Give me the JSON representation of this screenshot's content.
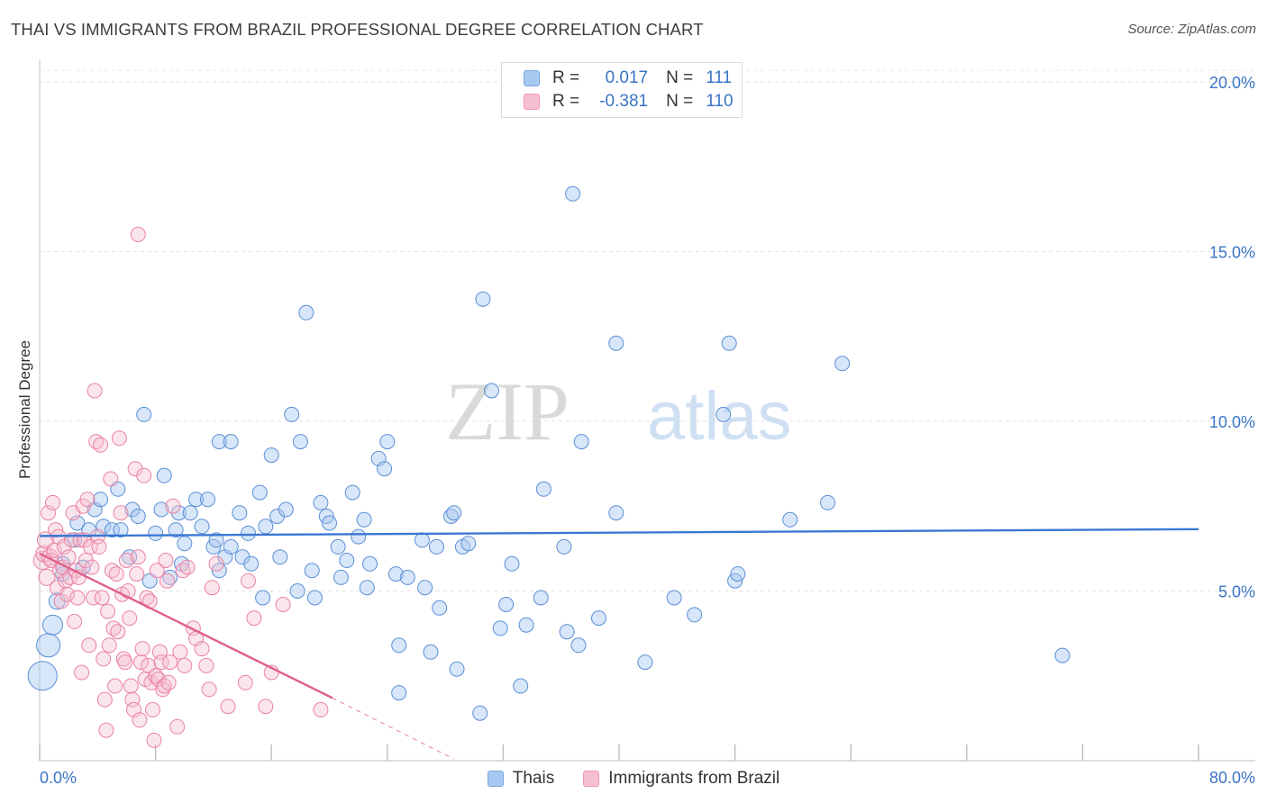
{
  "title": "THAI VS IMMIGRANTS FROM BRAZIL PROFESSIONAL DEGREE CORRELATION CHART",
  "source": "Source: ZipAtlas.com",
  "watermark": {
    "zip": "ZIP",
    "atlas": "atlas"
  },
  "legend": {
    "rows": [
      {
        "r_label": "R =",
        "r_value": "0.017",
        "n_label": "N =",
        "n_value": "111",
        "color": "#a7c8f0",
        "border": "#7aa8e0"
      },
      {
        "r_label": "R =",
        "r_value": "-0.381",
        "n_label": "N =",
        "n_value": "110",
        "color": "#f6bfd0",
        "border": "#ef97b2"
      }
    ]
  },
  "bottom_legend": [
    {
      "label": "Thais",
      "color": "#a7c8f0",
      "border": "#7aa8e0"
    },
    {
      "label": "Immigrants from Brazil",
      "color": "#f6bfd0",
      "border": "#ef97b2"
    }
  ],
  "chart_data": {
    "type": "scatter",
    "title": "THAI VS IMMIGRANTS FROM BRAZIL PROFESSIONAL DEGREE CORRELATION CHART",
    "xlabel": "",
    "ylabel": "Professional Degree",
    "xlim": [
      0,
      80
    ],
    "ylim": [
      0,
      20.5
    ],
    "x_tick_labels": [
      "0.0%",
      "80.0%"
    ],
    "y_ticks": [
      5,
      10,
      15,
      20
    ],
    "y_tick_labels": [
      "5.0%",
      "10.0%",
      "15.0%",
      "20.0%"
    ],
    "grid": true,
    "legend_position": "top-center",
    "series": [
      {
        "name": "Thais",
        "color": "#5b8fd6",
        "fill": "rgba(167,200,240,0.45)",
        "trend": {
          "x": [
            0,
            80
          ],
          "y": [
            6.62,
            6.82
          ],
          "color": "#3a78d4"
        },
        "points": [
          [
            0.2,
            2.5,
            16
          ],
          [
            0.6,
            3.4,
            13
          ],
          [
            0.9,
            4.0,
            11
          ],
          [
            1.2,
            4.7,
            9
          ],
          [
            1.6,
            5.8,
            8
          ],
          [
            1.6,
            5.5,
            8
          ],
          [
            2.4,
            6.5,
            8
          ],
          [
            2.6,
            7.0,
            8
          ],
          [
            3.0,
            5.7,
            8
          ],
          [
            3.4,
            6.8,
            8
          ],
          [
            3.8,
            7.4,
            8
          ],
          [
            4.2,
            7.7,
            8
          ],
          [
            4.4,
            6.9,
            8
          ],
          [
            5.0,
            6.8,
            8
          ],
          [
            5.4,
            8.0,
            8
          ],
          [
            5.6,
            6.8,
            8
          ],
          [
            6.2,
            6.0,
            8
          ],
          [
            6.4,
            7.4,
            8
          ],
          [
            6.8,
            7.2,
            8
          ],
          [
            7.2,
            10.2,
            8
          ],
          [
            7.6,
            5.3,
            8
          ],
          [
            8.0,
            6.7,
            8
          ],
          [
            8.4,
            7.4,
            8
          ],
          [
            8.6,
            8.4,
            8
          ],
          [
            9.0,
            5.4,
            8
          ],
          [
            9.4,
            6.8,
            8
          ],
          [
            9.6,
            7.3,
            8
          ],
          [
            9.8,
            5.8,
            8
          ],
          [
            10.0,
            6.4,
            8
          ],
          [
            10.4,
            7.3,
            8
          ],
          [
            10.8,
            7.7,
            8
          ],
          [
            11.2,
            6.9,
            8
          ],
          [
            11.6,
            7.7,
            8
          ],
          [
            12.0,
            6.3,
            8
          ],
          [
            12.2,
            6.5,
            8
          ],
          [
            12.4,
            5.6,
            8
          ],
          [
            12.4,
            9.4,
            8
          ],
          [
            12.8,
            6.0,
            8
          ],
          [
            13.2,
            6.3,
            8
          ],
          [
            13.2,
            9.4,
            8
          ],
          [
            13.8,
            7.3,
            8
          ],
          [
            14.0,
            6.0,
            8
          ],
          [
            14.4,
            6.7,
            8
          ],
          [
            14.6,
            5.8,
            8
          ],
          [
            15.2,
            7.9,
            8
          ],
          [
            15.4,
            4.8,
            8
          ],
          [
            15.6,
            6.9,
            8
          ],
          [
            16.0,
            9.0,
            8
          ],
          [
            16.4,
            7.2,
            8
          ],
          [
            16.6,
            6.0,
            8
          ],
          [
            17.0,
            7.4,
            8
          ],
          [
            17.4,
            10.2,
            8
          ],
          [
            17.8,
            5.0,
            8
          ],
          [
            18.0,
            9.4,
            8
          ],
          [
            18.4,
            13.2,
            8
          ],
          [
            18.8,
            5.6,
            8
          ],
          [
            19.0,
            4.8,
            8
          ],
          [
            19.4,
            7.6,
            8
          ],
          [
            19.8,
            7.2,
            8
          ],
          [
            20.0,
            7.0,
            8
          ],
          [
            20.6,
            6.3,
            8
          ],
          [
            20.8,
            5.4,
            8
          ],
          [
            21.2,
            5.9,
            8
          ],
          [
            21.6,
            7.9,
            8
          ],
          [
            22.0,
            6.6,
            8
          ],
          [
            22.4,
            7.1,
            8
          ],
          [
            22.6,
            5.1,
            8
          ],
          [
            22.8,
            5.8,
            8
          ],
          [
            23.4,
            8.9,
            8
          ],
          [
            23.8,
            8.6,
            8
          ],
          [
            24.0,
            9.4,
            8
          ],
          [
            24.6,
            5.5,
            8
          ],
          [
            24.8,
            3.4,
            8
          ],
          [
            24.8,
            2.0,
            8
          ],
          [
            25.4,
            5.4,
            8
          ],
          [
            26.4,
            6.5,
            8
          ],
          [
            26.6,
            5.1,
            8
          ],
          [
            27.0,
            3.2,
            8
          ],
          [
            27.4,
            6.3,
            8
          ],
          [
            27.6,
            4.5,
            8
          ],
          [
            28.4,
            7.2,
            8
          ],
          [
            28.6,
            7.3,
            8
          ],
          [
            28.8,
            2.7,
            8
          ],
          [
            29.2,
            6.3,
            8
          ],
          [
            29.6,
            6.4,
            8
          ],
          [
            30.4,
            1.4,
            8
          ],
          [
            30.6,
            13.6,
            8
          ],
          [
            31.2,
            10.9,
            8
          ],
          [
            31.8,
            3.9,
            8
          ],
          [
            32.2,
            4.6,
            8
          ],
          [
            32.6,
            5.8,
            8
          ],
          [
            33.2,
            2.2,
            8
          ],
          [
            33.6,
            4.0,
            8
          ],
          [
            34.6,
            4.8,
            8
          ],
          [
            34.8,
            8.0,
            8
          ],
          [
            36.2,
            6.3,
            8
          ],
          [
            36.4,
            3.8,
            8
          ],
          [
            36.8,
            16.7,
            8
          ],
          [
            37.2,
            3.4,
            8
          ],
          [
            37.4,
            9.4,
            8
          ],
          [
            38.6,
            4.2,
            8
          ],
          [
            39.8,
            7.3,
            8
          ],
          [
            39.8,
            12.3,
            8
          ],
          [
            41.8,
            2.9,
            8
          ],
          [
            43.8,
            4.8,
            8
          ],
          [
            45.2,
            4.3,
            8
          ],
          [
            47.2,
            10.2,
            8
          ],
          [
            47.6,
            12.3,
            8
          ],
          [
            48.0,
            5.3,
            8
          ],
          [
            48.2,
            5.5,
            8
          ],
          [
            51.8,
            7.1,
            8
          ],
          [
            54.4,
            7.6,
            8
          ],
          [
            55.4,
            11.7,
            8
          ],
          [
            70.6,
            3.1,
            8
          ]
        ]
      },
      {
        "name": "Immigrants from Brazil",
        "color": "#ea82a3",
        "fill": "rgba(246,191,208,0.40)",
        "trend": {
          "x": [
            0,
            20.2
          ],
          "y": [
            6.1,
            1.85
          ],
          "color": "#e0608a"
        },
        "trend_dashed": {
          "x": [
            20.2,
            28.6
          ],
          "y": [
            1.85,
            0.05
          ],
          "color": "#eaa0b8"
        },
        "points": [
          [
            0.2,
            5.9,
            10
          ],
          [
            0.3,
            6.1,
            9
          ],
          [
            0.4,
            6.5,
            9
          ],
          [
            0.5,
            5.4,
            9
          ],
          [
            0.6,
            7.3,
            8
          ],
          [
            0.7,
            6.0,
            9
          ],
          [
            0.8,
            5.9,
            8
          ],
          [
            0.9,
            7.6,
            8
          ],
          [
            1.0,
            6.2,
            8
          ],
          [
            1.1,
            6.8,
            8
          ],
          [
            1.2,
            5.1,
            8
          ],
          [
            1.3,
            6.6,
            8
          ],
          [
            1.4,
            5.6,
            8
          ],
          [
            1.5,
            4.7,
            8
          ],
          [
            1.6,
            5.7,
            8
          ],
          [
            1.7,
            6.3,
            8
          ],
          [
            1.8,
            5.3,
            8
          ],
          [
            1.9,
            4.9,
            8
          ],
          [
            2.0,
            6.0,
            8
          ],
          [
            2.1,
            5.4,
            8
          ],
          [
            2.2,
            6.5,
            8
          ],
          [
            2.3,
            7.3,
            8
          ],
          [
            2.4,
            4.1,
            8
          ],
          [
            2.5,
            5.6,
            8
          ],
          [
            2.6,
            4.8,
            8
          ],
          [
            2.7,
            5.4,
            8
          ],
          [
            2.8,
            6.5,
            8
          ],
          [
            2.9,
            2.6,
            8
          ],
          [
            3.0,
            7.5,
            8
          ],
          [
            3.1,
            6.5,
            8
          ],
          [
            3.2,
            5.9,
            8
          ],
          [
            3.3,
            7.7,
            8
          ],
          [
            3.4,
            3.4,
            8
          ],
          [
            3.5,
            6.3,
            8
          ],
          [
            3.6,
            5.7,
            8
          ],
          [
            3.7,
            4.8,
            8
          ],
          [
            3.8,
            10.9,
            8
          ],
          [
            3.9,
            9.4,
            8
          ],
          [
            4.0,
            6.6,
            8
          ],
          [
            4.1,
            6.3,
            8
          ],
          [
            4.2,
            9.3,
            8
          ],
          [
            4.3,
            4.8,
            8
          ],
          [
            4.4,
            3.0,
            8
          ],
          [
            4.5,
            1.8,
            8
          ],
          [
            4.6,
            0.9,
            8
          ],
          [
            4.7,
            4.4,
            8
          ],
          [
            4.8,
            3.4,
            8
          ],
          [
            4.9,
            8.3,
            8
          ],
          [
            5.0,
            5.6,
            8
          ],
          [
            5.1,
            3.9,
            8
          ],
          [
            5.2,
            2.2,
            8
          ],
          [
            5.3,
            5.5,
            8
          ],
          [
            5.4,
            3.8,
            8
          ],
          [
            5.5,
            9.5,
            8
          ],
          [
            5.6,
            7.3,
            8
          ],
          [
            5.7,
            4.9,
            8
          ],
          [
            5.8,
            3.0,
            8
          ],
          [
            5.9,
            2.9,
            8
          ],
          [
            6.0,
            5.9,
            8
          ],
          [
            6.1,
            5.0,
            8
          ],
          [
            6.2,
            4.2,
            8
          ],
          [
            6.3,
            2.2,
            8
          ],
          [
            6.4,
            1.8,
            8
          ],
          [
            6.5,
            1.5,
            8
          ],
          [
            6.6,
            8.6,
            8
          ],
          [
            6.7,
            5.5,
            8
          ],
          [
            6.8,
            6.0,
            8
          ],
          [
            6.9,
            1.2,
            8
          ],
          [
            7.0,
            2.9,
            8
          ],
          [
            7.1,
            3.3,
            8
          ],
          [
            7.2,
            8.4,
            8
          ],
          [
            7.3,
            2.4,
            8
          ],
          [
            7.4,
            4.8,
            8
          ],
          [
            7.5,
            2.8,
            8
          ],
          [
            7.6,
            4.7,
            8
          ],
          [
            7.7,
            2.3,
            8
          ],
          [
            7.8,
            1.5,
            8
          ],
          [
            7.9,
            0.6,
            8
          ],
          [
            8.0,
            2.5,
            8
          ],
          [
            8.1,
            5.6,
            8
          ],
          [
            8.2,
            2.4,
            8
          ],
          [
            8.3,
            3.2,
            8
          ],
          [
            8.4,
            2.9,
            8
          ],
          [
            8.5,
            2.1,
            8
          ],
          [
            8.6,
            2.2,
            8
          ],
          [
            8.7,
            5.9,
            8
          ],
          [
            8.8,
            5.3,
            8
          ],
          [
            8.9,
            2.3,
            8
          ],
          [
            9.0,
            2.9,
            8
          ],
          [
            9.2,
            7.5,
            8
          ],
          [
            9.5,
            1.0,
            8
          ],
          [
            9.7,
            3.2,
            8
          ],
          [
            9.9,
            5.6,
            8
          ],
          [
            10.0,
            2.8,
            8
          ],
          [
            10.2,
            5.7,
            8
          ],
          [
            10.6,
            3.9,
            8
          ],
          [
            10.8,
            3.6,
            8
          ],
          [
            11.2,
            3.3,
            8
          ],
          [
            11.5,
            2.8,
            8
          ],
          [
            11.7,
            2.1,
            8
          ],
          [
            11.9,
            5.1,
            8
          ],
          [
            12.2,
            5.8,
            8
          ],
          [
            13.0,
            1.6,
            8
          ],
          [
            14.2,
            2.3,
            8
          ],
          [
            14.4,
            5.3,
            8
          ],
          [
            14.8,
            4.2,
            8
          ],
          [
            15.6,
            1.6,
            8
          ],
          [
            16.0,
            2.6,
            8
          ],
          [
            16.8,
            4.6,
            8
          ],
          [
            19.4,
            1.5,
            8
          ],
          [
            6.8,
            15.5,
            8
          ]
        ]
      }
    ]
  }
}
